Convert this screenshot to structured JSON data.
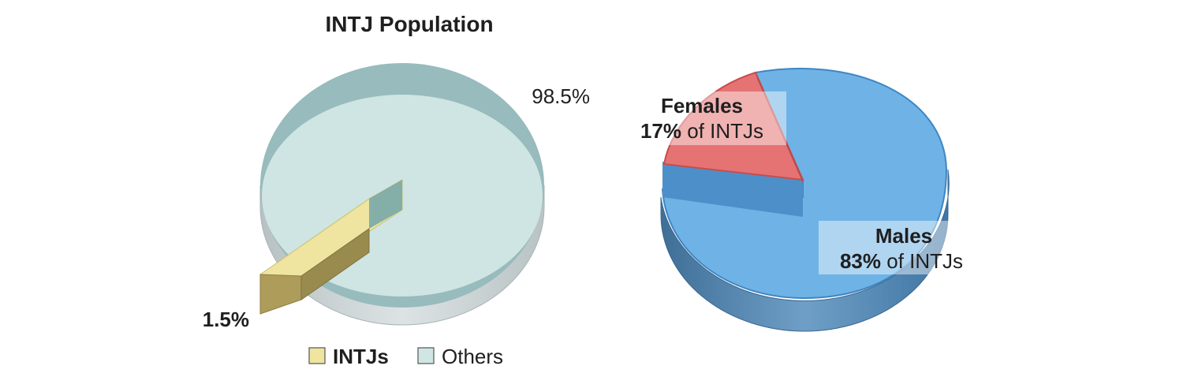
{
  "chart_data": [
    {
      "type": "pie",
      "title": "INTJ Population",
      "slices": [
        {
          "name": "INTJs",
          "value": 1.5,
          "label": "1.5%",
          "color": "#efe4a0"
        },
        {
          "name": "Others",
          "value": 98.5,
          "label": "98.5%",
          "color": "#cfe6e4"
        }
      ],
      "legend": {
        "placement": "bottom",
        "entries": [
          "INTJs",
          "Others"
        ]
      }
    },
    {
      "type": "pie",
      "title": "",
      "slices": [
        {
          "name": "Females",
          "value": 17,
          "pct": "17%",
          "suffix": " of INTJs",
          "color": "#e57373"
        },
        {
          "name": "Males",
          "value": 83,
          "pct": "83%",
          "suffix": " of INTJs",
          "color": "#6fb3e6"
        }
      ]
    }
  ]
}
